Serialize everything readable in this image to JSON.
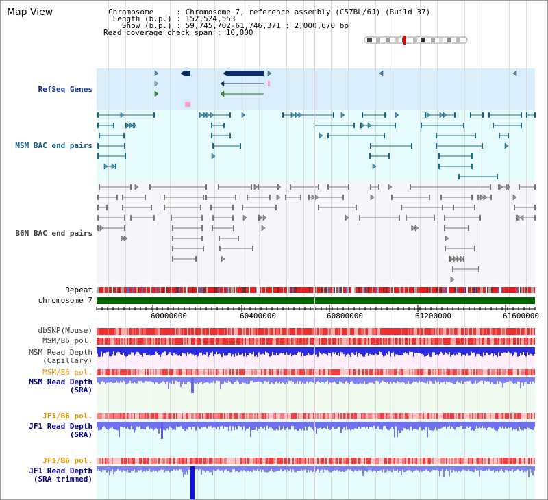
{
  "page_title": "Map View",
  "header": {
    "chromosome_key": "Chromosome     : ",
    "chromosome_val": "Chromosome 7, reference assembly (C57BL/6J) (Build 37)",
    "length_key": " Length (b.p.) : ",
    "length_val": "152,524,553",
    "show_key": "   Show (b.p.) : ",
    "show_val": "59,745,702-61,746,371 : 2,000,670 bp",
    "coverage_key": "Read coverage check span : ",
    "coverage_val": "10,000"
  },
  "tracks": {
    "refseq": "RefSeq Genes",
    "msm_bac": "MSM BAC end pairs",
    "b6n_bac": "B6N BAC end pairs",
    "repeat": "Repeat",
    "chromosome": "chromosome 7",
    "dbsnp": "dbSNP(Mouse)",
    "msm_b6_pol": "MSM/B6 pol.",
    "msm_read_depth_cap_1": "MSM Read Depth",
    "msm_read_depth_cap_2": "(Capillary)",
    "msm_b6_pol_2": "MSM/B6 pol.",
    "msm_read_depth_sra_1": "MSM Read Depth",
    "msm_read_depth_sra_2": "(SRA)",
    "jf1_b6_pol": "JF1/B6 pol.",
    "jf1_read_depth_sra_1": "JF1 Read Depth",
    "jf1_read_depth_sra_2": "(SRA)",
    "jf1_b6_pol_2": "JF1/B6 pol.",
    "jf1_read_depth_trim_1": "JF1 Read Depth",
    "jf1_read_depth_trim_2": "(SRA trimmed)"
  },
  "axis": {
    "ticks": [
      "60000000",
      "60400000",
      "60800000",
      "61200000",
      "61600000"
    ]
  },
  "colors": {
    "refseq_bg": "#d9eefa",
    "msm_bg": "#e6fbfb",
    "b6n_bg": "#f4f6fa",
    "chrom_green": "#006400",
    "repeat_red": "#e0201e",
    "depth_blue": "#2828e6",
    "depth_light_blue": "#7070f0",
    "pink_bg": "#fdeefa",
    "green_bg": "#eefbee",
    "cyan_bg": "#e6fbfb",
    "pol_red": "#ff3030"
  }
}
